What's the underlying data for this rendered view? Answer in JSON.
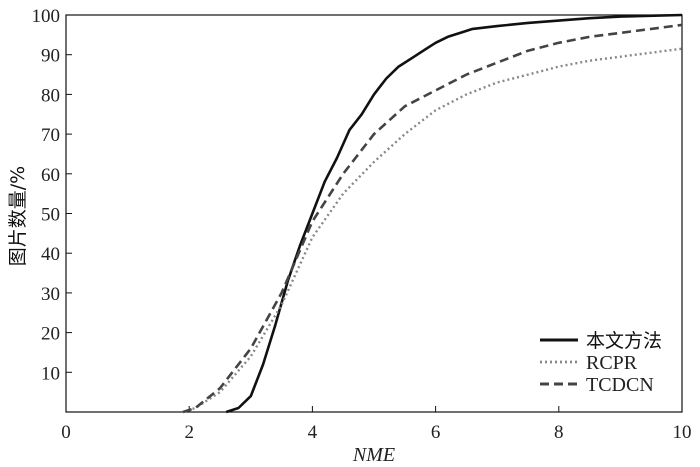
{
  "chart_data": {
    "type": "line",
    "title": "",
    "xlabel": "NME",
    "ylabel": "图片数量/%",
    "xlim": [
      0,
      10
    ],
    "ylim": [
      0,
      100
    ],
    "xticks": [
      "0",
      "2",
      "4",
      "6",
      "8",
      "10"
    ],
    "yticks": [
      "10",
      "20",
      "30",
      "40",
      "50",
      "60",
      "70",
      "80",
      "90",
      "100"
    ],
    "grid": false,
    "legend_position": "bottom-right",
    "series": [
      {
        "name": "本文方法",
        "style": "solid",
        "color": "#111111",
        "points": [
          [
            2.6,
            0
          ],
          [
            2.8,
            1
          ],
          [
            3.0,
            4
          ],
          [
            3.2,
            12
          ],
          [
            3.4,
            22
          ],
          [
            3.6,
            33
          ],
          [
            3.8,
            42
          ],
          [
            4.0,
            50
          ],
          [
            4.2,
            58
          ],
          [
            4.4,
            64
          ],
          [
            4.6,
            71
          ],
          [
            4.8,
            75
          ],
          [
            5.0,
            80
          ],
          [
            5.2,
            84
          ],
          [
            5.4,
            87
          ],
          [
            5.6,
            89
          ],
          [
            5.8,
            91
          ],
          [
            6.0,
            93
          ],
          [
            6.2,
            94.5
          ],
          [
            6.4,
            95.5
          ],
          [
            6.6,
            96.5
          ],
          [
            7.0,
            97.2
          ],
          [
            7.5,
            98
          ],
          [
            8.0,
            98.6
          ],
          [
            8.5,
            99.2
          ],
          [
            9.0,
            99.6
          ],
          [
            10.0,
            100
          ]
        ]
      },
      {
        "name": "RCPR",
        "style": "dotted",
        "color": "#888888",
        "points": [
          [
            1.9,
            0
          ],
          [
            2.1,
            1
          ],
          [
            2.5,
            5
          ],
          [
            3.0,
            14
          ],
          [
            3.5,
            27
          ],
          [
            4.0,
            44
          ],
          [
            4.5,
            55
          ],
          [
            5.0,
            63
          ],
          [
            5.5,
            70
          ],
          [
            6.0,
            76
          ],
          [
            6.5,
            80
          ],
          [
            7.0,
            83
          ],
          [
            7.5,
            85
          ],
          [
            8.0,
            87
          ],
          [
            8.5,
            88.5
          ],
          [
            9.0,
            89.5
          ],
          [
            9.5,
            90.5
          ],
          [
            10.0,
            91.5
          ]
        ]
      },
      {
        "name": "TCDCN",
        "style": "dashed",
        "color": "#444444",
        "points": [
          [
            1.9,
            0
          ],
          [
            2.1,
            1
          ],
          [
            2.5,
            6
          ],
          [
            3.0,
            16
          ],
          [
            3.5,
            30
          ],
          [
            4.0,
            48
          ],
          [
            4.5,
            60
          ],
          [
            5.0,
            70
          ],
          [
            5.5,
            77
          ],
          [
            6.0,
            81
          ],
          [
            6.5,
            85
          ],
          [
            7.0,
            88
          ],
          [
            7.5,
            91
          ],
          [
            8.0,
            93
          ],
          [
            8.5,
            94.5
          ],
          [
            9.0,
            95.5
          ],
          [
            9.5,
            96.5
          ],
          [
            10.0,
            97.5
          ]
        ]
      }
    ]
  }
}
